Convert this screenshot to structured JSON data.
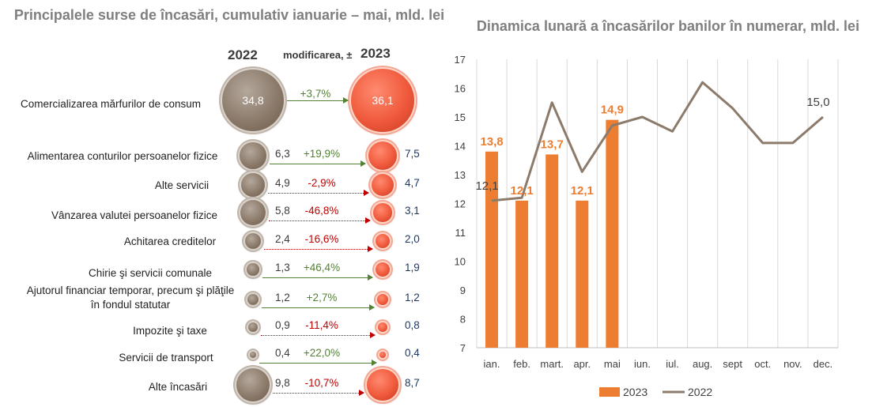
{
  "left_panel": {
    "title": "Principalele surse de încasări, cumulativ ianuarie – mai,  mld. lei",
    "header_2022": "2022",
    "header_mod": "modificarea, ±",
    "header_2023": "2023",
    "rows": [
      {
        "label": "Comercializarea mărfurilor de consum",
        "v2022": "34,8",
        "change": "+3,7%",
        "v2023": "36,1",
        "dir": "pos"
      },
      {
        "label": "Alimentarea conturilor persoanelor fizice",
        "v2022": "6,3",
        "change": "+19,9%",
        "v2023": "7,5",
        "dir": "pos"
      },
      {
        "label": "Alte servicii",
        "v2022": "4,9",
        "change": "-2,9%",
        "v2023": "4,7",
        "dir": "neg"
      },
      {
        "label": "Vânzarea valutei persoanelor fizice",
        "v2022": "5,8",
        "change": "-46,8%",
        "v2023": "3,1",
        "dir": "neg"
      },
      {
        "label": "Achitarea creditelor",
        "v2022": "2,4",
        "change": "-16,6%",
        "v2023": "2,0",
        "dir": "neg"
      },
      {
        "label": "Chirie şi servicii comunale",
        "v2022": "1,3",
        "change": "+46,4%",
        "v2023": "1,9",
        "dir": "pos"
      },
      {
        "label": "Ajutorul financiar temporar, precum şi plăţile în fondul statutar",
        "v2022": "1,2",
        "change": "+2,7%",
        "v2023": "1,2",
        "dir": "pos"
      },
      {
        "label": "Impozite şi taxe",
        "v2022": "0,9",
        "change": "-11,4%",
        "v2023": "0,8",
        "dir": "neg"
      },
      {
        "label": "Servicii de transport",
        "v2022": "0,4",
        "change": "+22,0%",
        "v2023": "0,4",
        "dir": "pos"
      },
      {
        "label": "Alte încasări",
        "v2022": "9,8",
        "change": "-10,7%",
        "v2023": "8,7",
        "dir": "neg"
      }
    ]
  },
  "chart_data": {
    "type": "bar+line",
    "title": "Dinamica lunară a încasărilor banilor în numerar, mld. lei",
    "categories": [
      "ian.",
      "feb.",
      "mart.",
      "apr.",
      "mai",
      "iun.",
      "iul.",
      "aug.",
      "sept",
      "oct.",
      "nov.",
      "dec."
    ],
    "ylim": [
      7,
      17
    ],
    "yticks": [
      7,
      8,
      9,
      10,
      11,
      12,
      13,
      14,
      15,
      16,
      17
    ],
    "series": [
      {
        "name": "2023",
        "kind": "bar",
        "color": "#ed7d31",
        "values": [
          13.8,
          12.1,
          13.7,
          12.1,
          14.9,
          null,
          null,
          null,
          null,
          null,
          null,
          null
        ],
        "labels": [
          "13,8",
          "12,1",
          "13,7",
          "12,1",
          "14,9",
          "",
          "",
          "",
          "",
          "",
          "",
          ""
        ]
      },
      {
        "name": "2022",
        "kind": "line",
        "color": "#8c7b6b",
        "values": [
          12.1,
          12.2,
          15.5,
          13.1,
          14.7,
          15.0,
          14.5,
          16.2,
          15.3,
          14.1,
          14.1,
          15.0
        ],
        "labels": [
          "12,1",
          "",
          "",
          "",
          "",
          "",
          "",
          "",
          "",
          "",
          "",
          "15,0"
        ]
      }
    ]
  }
}
